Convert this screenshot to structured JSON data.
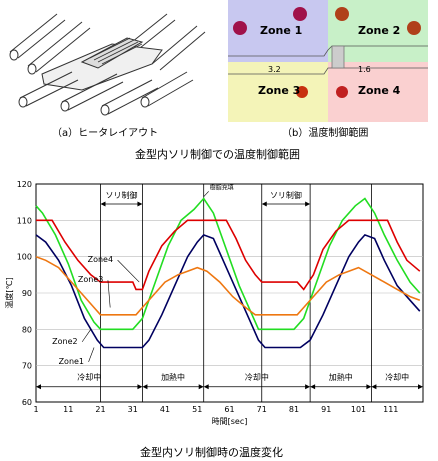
{
  "top_left": {
    "caption": "（a）ヒータレイアウト"
  },
  "top_right": {
    "caption": "（b）温度制御範囲",
    "zones": [
      {
        "label": "Zone 1",
        "bg": "#c8c8f0",
        "dot": "#a0124a"
      },
      {
        "label": "Zone 2",
        "bg": "#c8f0c8",
        "dot": "#b0401a"
      },
      {
        "label": "Zone 3",
        "bg": "#f4f4b8",
        "dot": "#c83010"
      },
      {
        "label": "Zone 4",
        "bg": "#fad0d0",
        "dot": "#c02020"
      }
    ],
    "dim_left": "3.2",
    "dim_right": "1.6"
  },
  "mid_title": "金型内ソリ制御での温度制御範囲",
  "chart_data": {
    "type": "line",
    "xlabel": "時間[sec]",
    "ylabel": "温度[℃]",
    "xlim": [
      1,
      121
    ],
    "ylim": [
      60,
      120
    ],
    "xticks": [
      "1",
      "11",
      "21",
      "31",
      "41",
      "51",
      "61",
      "71",
      "81",
      "91",
      "101",
      "111"
    ],
    "yticks": [
      "60",
      "70",
      "80",
      "90",
      "100",
      "110",
      "120"
    ],
    "series": [
      {
        "name": "Zone1",
        "color": "#000060",
        "points": [
          [
            1,
            106
          ],
          [
            4,
            104
          ],
          [
            8,
            99
          ],
          [
            12,
            92
          ],
          [
            16,
            83
          ],
          [
            20,
            77
          ],
          [
            22,
            75
          ],
          [
            34,
            75
          ],
          [
            36,
            77
          ],
          [
            40,
            84
          ],
          [
            44,
            92
          ],
          [
            48,
            100
          ],
          [
            51,
            104
          ],
          [
            53,
            106
          ],
          [
            56,
            105
          ],
          [
            59,
            99
          ],
          [
            63,
            91
          ],
          [
            67,
            83
          ],
          [
            70,
            77
          ],
          [
            72,
            75
          ],
          [
            83,
            75
          ],
          [
            86,
            77
          ],
          [
            90,
            84
          ],
          [
            94,
            92
          ],
          [
            98,
            100
          ],
          [
            101,
            104
          ],
          [
            103,
            106
          ],
          [
            106,
            105
          ],
          [
            109,
            99
          ],
          [
            113,
            92
          ],
          [
            117,
            88
          ],
          [
            120,
            85
          ]
        ]
      },
      {
        "name": "Zone2",
        "color": "#22dd22",
        "points": [
          [
            1,
            114
          ],
          [
            3,
            112
          ],
          [
            7,
            106
          ],
          [
            11,
            98
          ],
          [
            15,
            88
          ],
          [
            19,
            82
          ],
          [
            21,
            80
          ],
          [
            31,
            80
          ],
          [
            34,
            83
          ],
          [
            38,
            93
          ],
          [
            42,
            103
          ],
          [
            46,
            110
          ],
          [
            50,
            113
          ],
          [
            53,
            116
          ],
          [
            56,
            112
          ],
          [
            60,
            102
          ],
          [
            64,
            92
          ],
          [
            68,
            84
          ],
          [
            70,
            80
          ],
          [
            81,
            80
          ],
          [
            84,
            83
          ],
          [
            88,
            93
          ],
          [
            92,
            103
          ],
          [
            96,
            110
          ],
          [
            100,
            114
          ],
          [
            103,
            116
          ],
          [
            106,
            112
          ],
          [
            109,
            106
          ],
          [
            113,
            99
          ],
          [
            117,
            93
          ],
          [
            120,
            90
          ]
        ]
      },
      {
        "name": "Zone3",
        "color": "#ee7711",
        "points": [
          [
            1,
            100
          ],
          [
            4,
            99
          ],
          [
            8,
            97
          ],
          [
            12,
            93
          ],
          [
            16,
            89
          ],
          [
            19,
            86
          ],
          [
            21,
            84
          ],
          [
            32,
            84
          ],
          [
            34,
            86
          ],
          [
            37,
            89
          ],
          [
            41,
            93
          ],
          [
            45,
            95
          ],
          [
            48,
            96
          ],
          [
            51,
            97
          ],
          [
            54,
            96
          ],
          [
            58,
            93
          ],
          [
            62,
            89
          ],
          [
            66,
            86
          ],
          [
            69,
            84
          ],
          [
            82,
            84
          ],
          [
            84,
            86
          ],
          [
            87,
            89
          ],
          [
            91,
            93
          ],
          [
            95,
            95
          ],
          [
            98,
            96
          ],
          [
            101,
            97
          ],
          [
            105,
            95
          ],
          [
            109,
            93
          ],
          [
            113,
            91
          ],
          [
            117,
            89
          ],
          [
            120,
            88
          ]
        ]
      },
      {
        "name": "Zone4",
        "color": "#dd0000",
        "points": [
          [
            1,
            110
          ],
          [
            6,
            110
          ],
          [
            10,
            104
          ],
          [
            14,
            99
          ],
          [
            18,
            95
          ],
          [
            21,
            93
          ],
          [
            31,
            93
          ],
          [
            32,
            91
          ],
          [
            34,
            91
          ],
          [
            36,
            96
          ],
          [
            40,
            103
          ],
          [
            44,
            107
          ],
          [
            48,
            110
          ],
          [
            60,
            110
          ],
          [
            63,
            105
          ],
          [
            66,
            99
          ],
          [
            69,
            95
          ],
          [
            71,
            93
          ],
          [
            82,
            93
          ],
          [
            84,
            91
          ],
          [
            87,
            95
          ],
          [
            90,
            102
          ],
          [
            94,
            107
          ],
          [
            98,
            110
          ],
          [
            110,
            110
          ],
          [
            113,
            104
          ],
          [
            116,
            99
          ],
          [
            120,
            96
          ]
        ]
      }
    ],
    "annotations": {
      "top_labels": [
        {
          "text": "ソリ制御",
          "x0": 21,
          "x1": 34
        },
        {
          "text": "ソリ制御",
          "x0": 71,
          "x1": 86
        }
      ],
      "peak_label": {
        "text": "樹脂充填",
        "x": 53
      },
      "bottom_labels": [
        {
          "text": "冷却中",
          "x0": 1,
          "x1": 34
        },
        {
          "text": "加熱中",
          "x0": 34,
          "x1": 53
        },
        {
          "text": "冷却中",
          "x0": 53,
          "x1": 86
        },
        {
          "text": "加熱中",
          "x0": 86,
          "x1": 105
        },
        {
          "text": "冷却中",
          "x0": 105,
          "x1": 121
        }
      ],
      "vlines": [
        21,
        34,
        53,
        71,
        86,
        105
      ]
    }
  },
  "bottom_title": "金型内ソリ制御時の温度変化"
}
